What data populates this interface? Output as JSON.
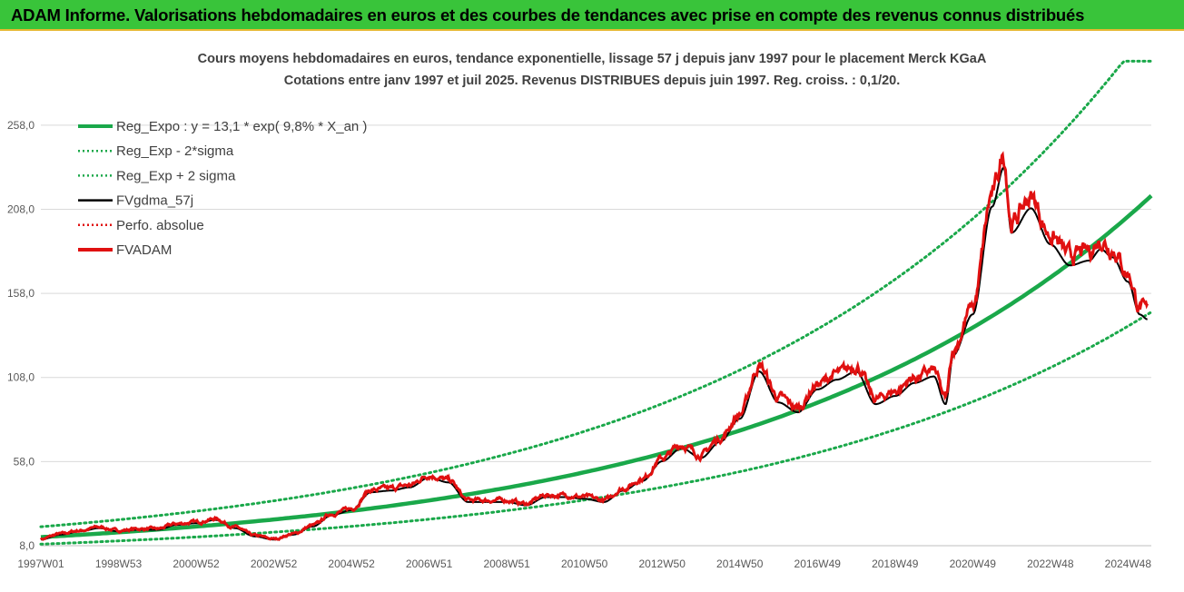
{
  "banner": {
    "title": "ADAM Informe. Valorisations hebdomadaires en euros et des courbes de tendances avec prise en compte des revenus connus distribués"
  },
  "chart_data": {
    "type": "line",
    "title": "Cours moyens hebdomadaires en euros, tendance exponentielle, lissage 57 j depuis janv 1997 pour le placement Merck KGaA",
    "subtitle": "Cotations entre janv 1997 et juil 2025. Revenus DISTRIBUES depuis juin 1997. Reg. croiss. : 0,1/20.",
    "xlabel": "",
    "ylabel": "",
    "ylim": [
      8,
      258
    ],
    "xlim": [
      1997.0,
      2025.6
    ],
    "grid": true,
    "legend_position": "top-left",
    "x_tick_labels": [
      "1997W01",
      "1998W53",
      "2000W52",
      "2002W52",
      "2004W52",
      "2006W51",
      "2008W51",
      "2010W50",
      "2012W50",
      "2014W50",
      "2016W49",
      "2018W49",
      "2020W49",
      "2022W48",
      "2024W48"
    ],
    "x_tick_years": [
      1997.0,
      1999.0,
      2001.0,
      2003.0,
      2005.0,
      2007.0,
      2009.0,
      2011.0,
      2013.0,
      2015.0,
      2017.0,
      2019.0,
      2021.0,
      2023.0,
      2025.0
    ],
    "y_ticks": [
      8,
      58,
      108,
      158,
      208,
      258
    ],
    "y_tick_labels": [
      "8,0",
      "58,0",
      "108,0",
      "158,0",
      "208,0",
      "258,0"
    ],
    "legend": [
      {
        "label": "Reg_Expo : y = 13,1 * exp( 9,8% *  X_an )",
        "color": "#1aa84a",
        "style": "solid-thick"
      },
      {
        "label": "Reg_Exp - 2*sigma",
        "color": "#1aa84a",
        "style": "dotted"
      },
      {
        "label": "Reg_Exp + 2 sigma",
        "color": "#1aa84a",
        "style": "dotted"
      },
      {
        "label": "FVgdma_57j",
        "color": "#000000",
        "style": "solid"
      },
      {
        "label": "Perfo. absolue",
        "color": "#e01010",
        "style": "dotted"
      },
      {
        "label": "FVADAM",
        "color": "#e01010",
        "style": "solid-thick"
      }
    ],
    "series": [
      {
        "name": "Reg_Expo",
        "formula_a": 13.1,
        "formula_b": 0.098,
        "x_origin": 1997.0
      },
      {
        "name": "Reg_Exp - 2*sigma",
        "factor": 0.68
      },
      {
        "name": "Reg_Exp + 2 sigma",
        "factor": 1.47,
        "cap": 296
      },
      {
        "name": "FVADAM",
        "x": [
          1997.0,
          1997.5,
          1998.0,
          1998.5,
          1999.0,
          1999.5,
          2000.0,
          2000.5,
          2001.0,
          2001.5,
          2002.0,
          2002.5,
          2003.0,
          2003.5,
          2004.0,
          2004.5,
          2005.0,
          2005.5,
          2006.0,
          2006.5,
          2007.0,
          2007.5,
          2008.0,
          2008.5,
          2009.0,
          2009.5,
          2010.0,
          2010.5,
          2011.0,
          2011.5,
          2012.0,
          2012.5,
          2013.0,
          2013.5,
          2014.0,
          2014.5,
          2015.0,
          2015.5,
          2016.0,
          2016.5,
          2017.0,
          2017.5,
          2018.0,
          2018.5,
          2019.0,
          2019.5,
          2020.0,
          2020.3,
          2020.5,
          2021.0,
          2021.5,
          2021.8,
          2022.0,
          2022.5,
          2023.0,
          2023.5,
          2024.0,
          2024.3,
          2024.6,
          2025.0,
          2025.3,
          2025.5
        ],
        "values": [
          12,
          15,
          17,
          19,
          17,
          18,
          18,
          21,
          22,
          24,
          19,
          14,
          12,
          15,
          20,
          27,
          30,
          41,
          42,
          44,
          50,
          47,
          35,
          35,
          35,
          33,
          38,
          38,
          37,
          35,
          42,
          48,
          60,
          68,
          62,
          72,
          86,
          115,
          96,
          90,
          104,
          110,
          115,
          95,
          100,
          108,
          112,
          95,
          125,
          150,
          216,
          240,
          200,
          215,
          193,
          180,
          183,
          190,
          185,
          170,
          150,
          147
        ]
      },
      {
        "name": "FVgdma_57j",
        "x": [
          1997.0,
          1998.0,
          1999.0,
          2000.0,
          2001.0,
          2002.0,
          2003.0,
          2004.0,
          2005.0,
          2006.0,
          2007.0,
          2008.0,
          2009.0,
          2010.0,
          2011.0,
          2012.0,
          2013.0,
          2014.0,
          2015.0,
          2016.0,
          2017.0,
          2018.0,
          2019.0,
          2020.0,
          2020.5,
          2021.0,
          2021.5,
          2022.0,
          2022.5,
          2023.0,
          2023.5,
          2024.0,
          2024.5,
          2025.0,
          2025.5
        ],
        "values": [
          13,
          16,
          18,
          19,
          22,
          18,
          13,
          18,
          28,
          40,
          46,
          38,
          34,
          37,
          36,
          43,
          58,
          64,
          80,
          98,
          105,
          112,
          100,
          108,
          118,
          140,
          205,
          206,
          200,
          187,
          182,
          182,
          185,
          165,
          148
        ]
      }
    ]
  },
  "colors": {
    "banner": "#39c43a",
    "banner_border": "#e6b830",
    "regression": "#1aa84a",
    "price": "#e01010",
    "smoothed": "#000000",
    "grid": "#d9d9d9"
  }
}
